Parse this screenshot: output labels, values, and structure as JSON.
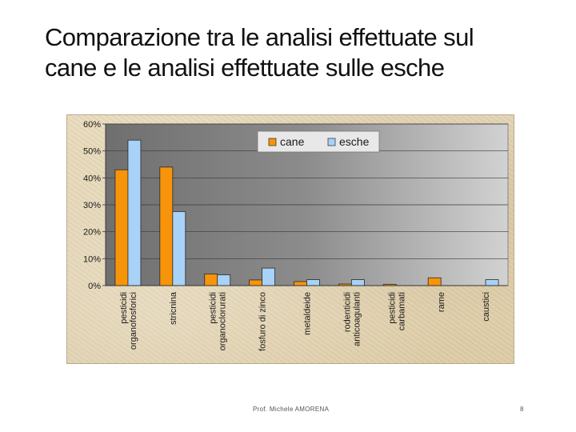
{
  "slide": {
    "title_line1": "Comparazione tra le analisi effettuate sul",
    "title_line2": "cane e le analisi effettuate sulle esche",
    "footer": "Prof. Michele AMORENA",
    "page_number": "8"
  },
  "colors": {
    "cane": "#f7940a",
    "esche": "#a8d2f7",
    "plot_background": "#8c8c8c",
    "axis_text": "#1a1a1a"
  },
  "chart_data": {
    "type": "bar",
    "title": "",
    "xlabel": "",
    "ylabel": "",
    "ylim": [
      0,
      60
    ],
    "y_tick_values": [
      0,
      10,
      20,
      30,
      40,
      50,
      60
    ],
    "y_tick_labels": [
      "0%",
      "10%",
      "20%",
      "30%",
      "40%",
      "50%",
      "60%"
    ],
    "grid": true,
    "legend_position": "top-right",
    "categories": [
      [
        "pesticidi",
        "organofosforici"
      ],
      [
        "stricnina"
      ],
      [
        "pesticidi",
        "organoclorurati"
      ],
      [
        "fosfuro di zinco"
      ],
      [
        "metaldeide"
      ],
      [
        "rodenticidi",
        "anticoagulanti"
      ],
      [
        "pesticidi",
        "carbamati"
      ],
      [
        "rame"
      ],
      [
        "caustici"
      ]
    ],
    "series": [
      {
        "name": "cane",
        "values": [
          43,
          44,
          4.3,
          2.1,
          1.5,
          0.6,
          0.5,
          2.9,
          0
        ]
      },
      {
        "name": "esche",
        "values": [
          54,
          27.5,
          4.0,
          6.5,
          2.2,
          2.2,
          0,
          0,
          2.2
        ]
      }
    ]
  }
}
